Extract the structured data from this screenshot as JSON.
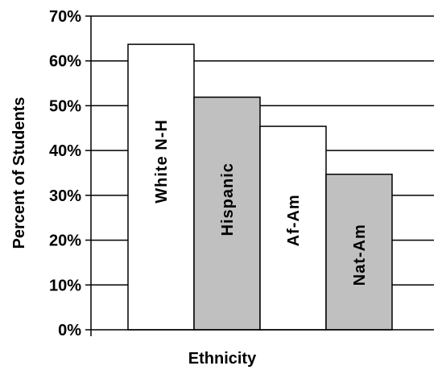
{
  "chart_data": {
    "type": "bar",
    "categories": [
      "White N-H",
      "Hispanic",
      "Af-Am",
      "Nat-Am"
    ],
    "values": [
      63.7,
      51.9,
      45.4,
      34.7
    ],
    "bar_colors": [
      "#ffffff",
      "#c0c0c0",
      "#ffffff",
      "#c0c0c0"
    ],
    "xlabel": "Ethnicity",
    "ylabel": "Percent of Students",
    "ylim": [
      0,
      70
    ],
    "y_ticks": [
      {
        "value": 0,
        "label": "0%"
      },
      {
        "value": 10,
        "label": "10%"
      },
      {
        "value": 20,
        "label": "20%"
      },
      {
        "value": 30,
        "label": "30%"
      },
      {
        "value": 40,
        "label": "40%"
      },
      {
        "value": 50,
        "label": "50%"
      },
      {
        "value": 60,
        "label": "60%"
      },
      {
        "value": 70,
        "label": "70%"
      }
    ],
    "grid": true,
    "legend": "none"
  }
}
